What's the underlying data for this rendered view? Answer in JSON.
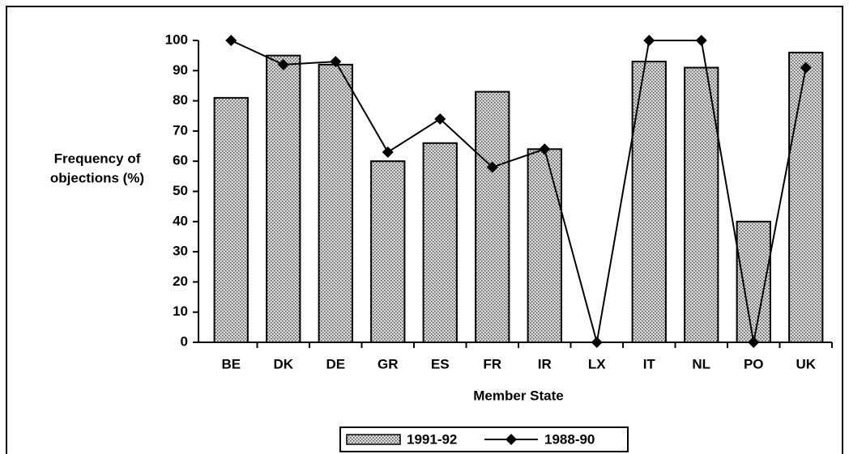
{
  "chart_data": {
    "type": "bar",
    "categories": [
      "BE",
      "DK",
      "DE",
      "GR",
      "ES",
      "FR",
      "IR",
      "LX",
      "IT",
      "NL",
      "PO",
      "UK"
    ],
    "series": [
      {
        "name": "1991-92",
        "type": "bar",
        "color": "#b0b0b0",
        "values": [
          81,
          95,
          92,
          60,
          66,
          83,
          64,
          null,
          93,
          91,
          40,
          96
        ]
      },
      {
        "name": "1988-90",
        "type": "line",
        "color": "#000000",
        "values": [
          100,
          92,
          93,
          63,
          74,
          58,
          64,
          0,
          100,
          100,
          0,
          91
        ]
      }
    ],
    "y_label": [
      "Frequency of",
      "objections (%)"
    ],
    "x_label": "Member State",
    "ylim": [
      0,
      100
    ],
    "yticks": [
      0,
      10,
      20,
      30,
      40,
      50,
      60,
      70,
      80,
      90,
      100
    ],
    "grid": false,
    "legend": "bottom"
  }
}
